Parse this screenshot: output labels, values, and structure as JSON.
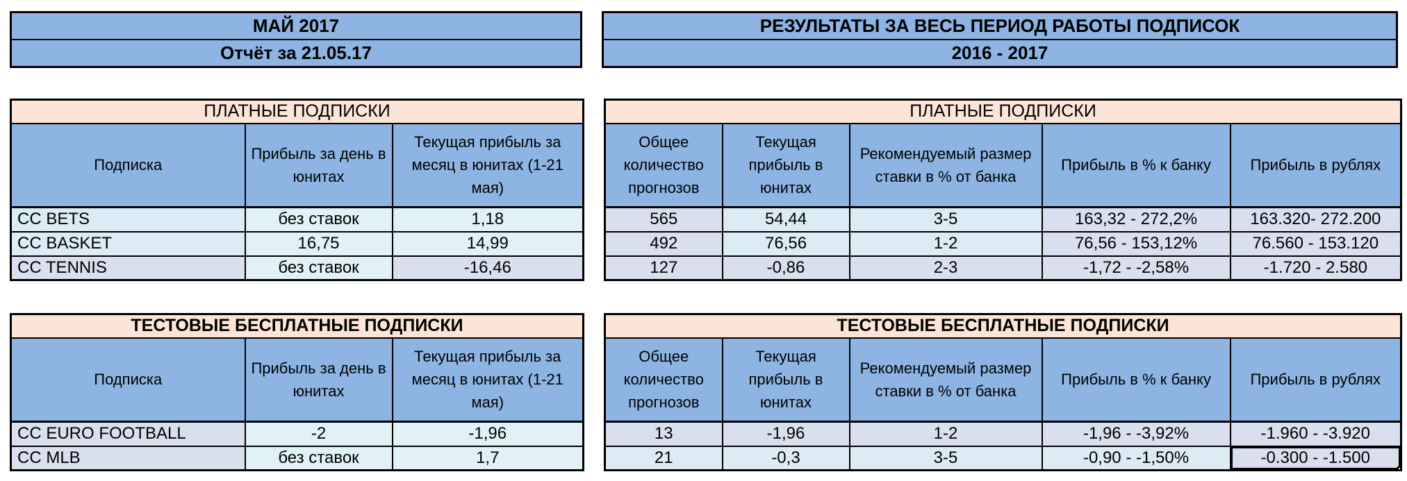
{
  "palette": {
    "header_blue": "#8db4e2",
    "section_peach": "#fce5d6",
    "cell_cyan": "#dcebf4",
    "cell_cyan_light": "#e1f2f6",
    "cell_lavender": "#d9dfee",
    "border_black": "#000000",
    "page_bg": "#ffffff"
  },
  "header_left": {
    "line1": "МАЙ 2017",
    "line2": "Отчёт за 21.05.17"
  },
  "header_right": {
    "line1": "РЕЗУЛЬТАТЫ ЗА ВЕСЬ ПЕРИОД РАБОТЫ ПОДПИСОК",
    "line2": "2016 - 2017"
  },
  "tables": {
    "paid_left": {
      "title": "ПЛАТНЫЕ ПОДПИСКИ",
      "columns": [
        "Подписка",
        "Прибыль за день в юнитах",
        "Текущая прибыль за месяц в юнитах (1-21 мая)"
      ],
      "rows": [
        {
          "cells": [
            "CC BETS",
            "без ставок",
            "1,18"
          ],
          "tints": [
            "cell_cyan",
            "cell_cyan_light",
            "cell_cyan_light"
          ]
        },
        {
          "cells": [
            "CC BASKET",
            "16,75",
            "14,99"
          ],
          "tints": [
            "cell_cyan",
            "cell_cyan_light",
            "cell_cyan_light"
          ]
        },
        {
          "cells": [
            "CC TENNIS",
            "без ставок",
            "-16,46"
          ],
          "tints": [
            "cell_lavender",
            "cell_cyan_light",
            "cell_lavender"
          ]
        }
      ]
    },
    "paid_right": {
      "title": "ПЛАТНЫЕ ПОДПИСКИ",
      "columns": [
        "Общее количество прогнозов",
        "Текущая прибыль в юнитах",
        "Рекомендуемый размер ставки в % от банка",
        "Прибыль в % к банку",
        "Прибыль в рублях"
      ],
      "rows": [
        {
          "cells": [
            "565",
            "54,44",
            "3-5",
            "163,32 - 272,2%",
            "163.320- 272.200"
          ],
          "tints": [
            "cell_lavender",
            "cell_cyan",
            "cell_cyan",
            "cell_lavender",
            "cell_lavender"
          ]
        },
        {
          "cells": [
            "492",
            "76,56",
            "1-2",
            "76,56 - 153,12%",
            "76.560 - 153.120"
          ],
          "tints": [
            "cell_lavender",
            "cell_cyan",
            "cell_cyan",
            "cell_lavender",
            "cell_lavender"
          ]
        },
        {
          "cells": [
            "127",
            "-0,86",
            "2-3",
            "-1,72 - -2,58%",
            "-1.720 - 2.580"
          ],
          "tints": [
            "cell_lavender",
            "cell_lavender",
            "cell_lavender",
            "cell_lavender",
            "cell_lavender"
          ]
        }
      ]
    },
    "test_left": {
      "title": "ТЕСТОВЫЕ БЕСПЛАТНЫЕ ПОДПИСКИ",
      "columns": [
        "Подписка",
        "Прибыль за день в юнитах",
        "Текущая прибыль за месяц в юнитах (1-21 мая)"
      ],
      "rows": [
        {
          "cells": [
            "CC EURO FOOTBALL",
            "-2",
            "-1,96"
          ],
          "tints": [
            "cell_lavender",
            "cell_cyan_light",
            "cell_cyan_light"
          ]
        },
        {
          "cells": [
            "CC MLB",
            "без ставок",
            "1,7"
          ],
          "tints": [
            "cell_lavender",
            "cell_cyan_light",
            "cell_cyan_light"
          ]
        }
      ]
    },
    "test_right": {
      "title": "ТЕСТОВЫЕ БЕСПЛАТНЫЕ ПОДПИСКИ",
      "columns": [
        "Общее количество прогнозов",
        "Текущая прибыль в юнитах",
        "Рекомендуемый размер ставки в % от банка",
        "Прибыль в % к банку",
        "Прибыль в рублях"
      ],
      "rows": [
        {
          "cells": [
            "13",
            "-1,96",
            "1-2",
            "-1,96 - -3,92%",
            "-1.960 - -3.920"
          ],
          "tints": [
            "cell_lavender",
            "cell_lavender",
            "cell_lavender",
            "cell_lavender",
            "cell_lavender"
          ]
        },
        {
          "cells": [
            "21",
            "-0,3",
            "3-5",
            "-0,90 - -1,50%",
            "-0.300 - -1.500"
          ],
          "tints": [
            "cell_cyan",
            "cell_cyan",
            "cell_cyan",
            "cell_cyan",
            "cell_lavender"
          ]
        }
      ],
      "selected": {
        "row": 1,
        "col": 4
      }
    }
  }
}
